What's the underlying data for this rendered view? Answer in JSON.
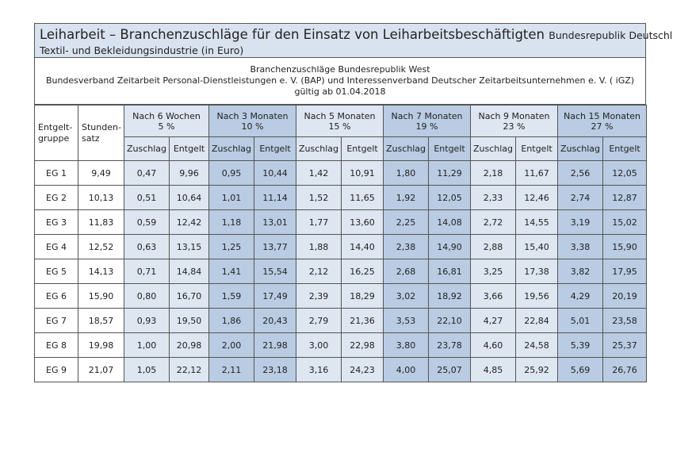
{
  "title": {
    "main": "Leiharbeit – Branchenzuschläge für den Einsatz von Leiharbeitsbeschäftigten",
    "region": "Bundesrepublik Deutschland",
    "industry": "Textil- und Bekleidungsindustrie (in Euro)"
  },
  "info": {
    "line1": "Branchenzuschläge Bundesrepublik West",
    "line2": "Bundesverband Zeitarbeit Personal-Dienstleistungen e. V. (BAP) und Interessenverband Deutscher Zeitarbeitsunternehmen e. V. ( iGZ)",
    "line3": "gültig ab 01.04.2018"
  },
  "columns": {
    "group_l1": "Entgelt-",
    "group_l2": "gruppe",
    "rate_l1": "Stunden-",
    "rate_l2": "satz",
    "periods": [
      {
        "label": "Nach 6 Wochen",
        "pct": "5 %"
      },
      {
        "label": "Nach 3 Monaten",
        "pct": "10 %"
      },
      {
        "label": "Nach 5 Monaten",
        "pct": "15 %"
      },
      {
        "label": "Nach 7 Monaten",
        "pct": "19 %"
      },
      {
        "label": "Nach 9 Monaten",
        "pct": "23 %"
      },
      {
        "label": "Nach 15 Monaten",
        "pct": "27 %"
      }
    ],
    "zuschlag": "Zuschlag",
    "entgelt": "Entgelt"
  },
  "rows": [
    {
      "eg": "EG 1",
      "rate": "9,49",
      "vals": [
        "0,47",
        "9,96",
        "0,95",
        "10,44",
        "1,42",
        "10,91",
        "1,80",
        "11,29",
        "2,18",
        "11,67",
        "2,56",
        "12,05"
      ]
    },
    {
      "eg": "EG 2",
      "rate": "10,13",
      "vals": [
        "0,51",
        "10,64",
        "1,01",
        "11,14",
        "1,52",
        "11,65",
        "1,92",
        "12,05",
        "2,33",
        "12,46",
        "2,74",
        "12,87"
      ]
    },
    {
      "eg": "EG 3",
      "rate": "11,83",
      "vals": [
        "0,59",
        "12,42",
        "1,18",
        "13,01",
        "1,77",
        "13,60",
        "2,25",
        "14,08",
        "2,72",
        "14,55",
        "3,19",
        "15,02"
      ]
    },
    {
      "eg": "EG 4",
      "rate": "12,52",
      "vals": [
        "0,63",
        "13,15",
        "1,25",
        "13,77",
        "1,88",
        "14,40",
        "2,38",
        "14,90",
        "2,88",
        "15,40",
        "3,38",
        "15,90"
      ]
    },
    {
      "eg": "EG 5",
      "rate": "14,13",
      "vals": [
        "0,71",
        "14,84",
        "1,41",
        "15,54",
        "2,12",
        "16,25",
        "2,68",
        "16,81",
        "3,25",
        "17,38",
        "3,82",
        "17,95"
      ]
    },
    {
      "eg": "EG 6",
      "rate": "15,90",
      "vals": [
        "0,80",
        "16,70",
        "1,59",
        "17,49",
        "2,39",
        "18,29",
        "3,02",
        "18,92",
        "3,66",
        "19,56",
        "4,29",
        "20,19"
      ]
    },
    {
      "eg": "EG 7",
      "rate": "18,57",
      "vals": [
        "0,93",
        "19,50",
        "1,86",
        "20,43",
        "2,79",
        "21,36",
        "3,53",
        "22,10",
        "4,27",
        "22,84",
        "5,01",
        "23,58"
      ]
    },
    {
      "eg": "EG 8",
      "rate": "19,98",
      "vals": [
        "1,00",
        "20,98",
        "2,00",
        "21,98",
        "3,00",
        "22,98",
        "3,80",
        "23,78",
        "4,60",
        "24,58",
        "5,39",
        "25,37"
      ]
    },
    {
      "eg": "EG 9",
      "rate": "21,07",
      "vals": [
        "1,05",
        "22,12",
        "2,11",
        "23,18",
        "3,16",
        "24,23",
        "4,00",
        "25,07",
        "4,85",
        "25,92",
        "5,69",
        "26,76"
      ]
    }
  ],
  "colors": {
    "light": "#dde6f1",
    "dark": "#b9cce3",
    "title_bg": "#d9e3ef"
  }
}
